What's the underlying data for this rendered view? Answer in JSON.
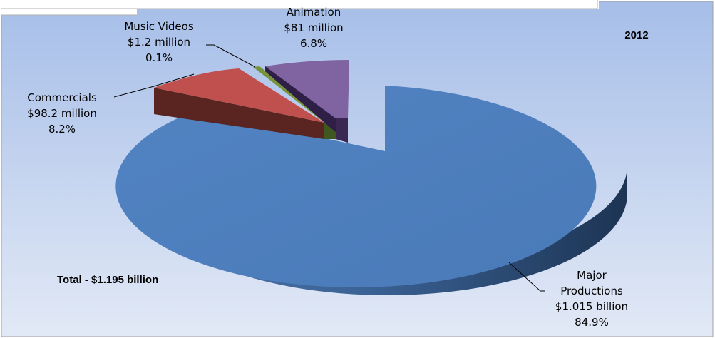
{
  "chart_data": {
    "type": "pie",
    "title": "2012",
    "total_label": "Total - $1.195 billion",
    "slices": [
      {
        "name": "Major Productions",
        "value": 1015,
        "amount_label": "$1.015 billion",
        "percent": 84.9,
        "percent_label": "84.9%",
        "color": "#4f7fbe",
        "exploded": false
      },
      {
        "name": "Commercials",
        "value": 98.2,
        "amount_label": "$98.2 million",
        "percent": 8.2,
        "percent_label": "8.2%",
        "color": "#c0504d",
        "exploded": true
      },
      {
        "name": "Music Videos",
        "value": 1.2,
        "amount_label": "$1.2 million",
        "percent": 0.1,
        "percent_label": "0.1%",
        "color": "#77933c",
        "exploded": true
      },
      {
        "name": "Animation",
        "value": 81,
        "amount_label": "$81 million",
        "percent": 6.8,
        "percent_label": "6.8%",
        "color": "#8064a2",
        "exploded": true
      }
    ],
    "labels": {
      "major": [
        "Major",
        "Productions",
        "$1.015 billion",
        "84.9%"
      ],
      "commercials": [
        "Commercials",
        "$98.2 million",
        "8.2%"
      ],
      "music": [
        "Music Videos",
        "$1.2 million",
        "0.1%"
      ],
      "animation": [
        "Animation",
        "$81 million",
        "6.8%"
      ]
    },
    "background": {
      "top": "#a8c0e8",
      "bottom": "#dde6f6"
    }
  }
}
